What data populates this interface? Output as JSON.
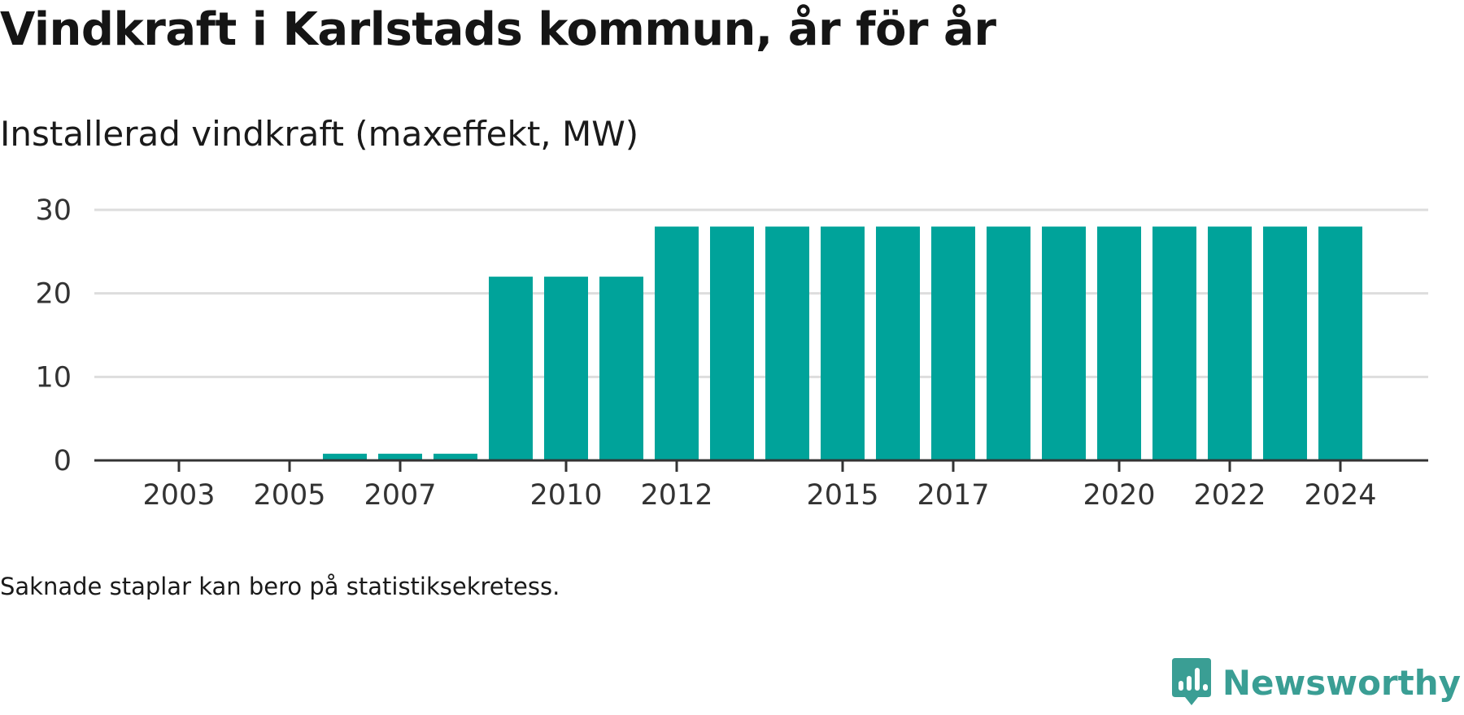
{
  "title": "Vindkraft i Karlstads kommun, år för år",
  "subtitle": "Installerad vindkraft (maxeffekt, MW)",
  "note": "Saknade staplar kan bero på statistiksekretess.",
  "brand": {
    "name": "Newsworthy",
    "icon": "newsworthy-logo-icon",
    "color": "#3a9e94"
  },
  "colors": {
    "bar": "#00a39a",
    "grid": "#dddddd",
    "axis": "#333333"
  },
  "chart_data": {
    "type": "bar",
    "title": "Vindkraft i Karlstads kommun, år för år",
    "subtitle": "Installerad vindkraft (maxeffekt, MW)",
    "xlabel": "",
    "ylabel": "",
    "categories": [
      "2002",
      "2003",
      "2004",
      "2005",
      "2006",
      "2007",
      "2008",
      "2009",
      "2010",
      "2011",
      "2012",
      "2013",
      "2014",
      "2015",
      "2016",
      "2017",
      "2018",
      "2019",
      "2020",
      "2021",
      "2022",
      "2023",
      "2024"
    ],
    "values": [
      0,
      0,
      0,
      0,
      0.8,
      0.8,
      0.8,
      22,
      22,
      22,
      28,
      28,
      28,
      28,
      28,
      28,
      28,
      28,
      28,
      28,
      28,
      28,
      28
    ],
    "x_tick_labels": [
      "2003",
      "2005",
      "2007",
      "2010",
      "2012",
      "2015",
      "2017",
      "2020",
      "2022",
      "2024"
    ],
    "y_ticks": [
      "0",
      "10",
      "20",
      "30"
    ],
    "ylim": [
      0,
      30
    ],
    "grid": true,
    "legend": "none"
  }
}
